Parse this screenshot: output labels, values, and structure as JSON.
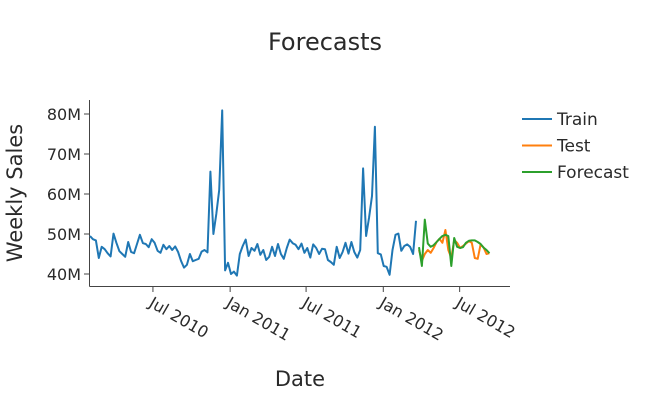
{
  "chart_data": {
    "type": "line",
    "title": "Forecasts",
    "xlabel": "Date",
    "ylabel": "Weekly Sales",
    "xlim": [
      "2010-02-01",
      "2012-10-29"
    ],
    "ylim": [
      37000000,
      83500000
    ],
    "y_ticks": [
      {
        "value": 40000000,
        "label": "40M"
      },
      {
        "value": 50000000,
        "label": "50M"
      },
      {
        "value": 60000000,
        "label": "60M"
      },
      {
        "value": 70000000,
        "label": "70M"
      },
      {
        "value": 80000000,
        "label": "80M"
      }
    ],
    "x_ticks": [
      {
        "value": "2010-07-01",
        "label": "Jul 2010"
      },
      {
        "value": "2011-01-01",
        "label": "Jan 2011"
      },
      {
        "value": "2011-07-01",
        "label": "Jul 2011"
      },
      {
        "value": "2012-01-01",
        "label": "Jan 2012"
      },
      {
        "value": "2012-07-01",
        "label": "Jul 2012"
      }
    ],
    "grid": false,
    "legend_position": "top-right",
    "series": [
      {
        "name": "Train",
        "color": "#1f77b4",
        "points": [
          [
            "2010-02-01",
            49.5
          ],
          [
            "2010-02-08",
            48.7
          ],
          [
            "2010-02-15",
            48.4
          ],
          [
            "2010-02-22",
            44.0
          ],
          [
            "2010-03-01",
            46.8
          ],
          [
            "2010-03-08",
            46.2
          ],
          [
            "2010-03-15",
            45.2
          ],
          [
            "2010-03-22",
            44.4
          ],
          [
            "2010-03-29",
            50.1
          ],
          [
            "2010-04-05",
            47.8
          ],
          [
            "2010-04-12",
            45.7
          ],
          [
            "2010-04-19",
            45.0
          ],
          [
            "2010-04-26",
            44.3
          ],
          [
            "2010-05-03",
            48.0
          ],
          [
            "2010-05-10",
            45.5
          ],
          [
            "2010-05-17",
            45.2
          ],
          [
            "2010-05-24",
            47.5
          ],
          [
            "2010-05-31",
            49.8
          ],
          [
            "2010-06-07",
            47.7
          ],
          [
            "2010-06-14",
            47.5
          ],
          [
            "2010-06-21",
            46.7
          ],
          [
            "2010-06-28",
            48.7
          ],
          [
            "2010-07-05",
            47.8
          ],
          [
            "2010-07-12",
            45.8
          ],
          [
            "2010-07-19",
            45.3
          ],
          [
            "2010-07-26",
            47.3
          ],
          [
            "2010-08-02",
            46.2
          ],
          [
            "2010-08-09",
            47.0
          ],
          [
            "2010-08-16",
            46.0
          ],
          [
            "2010-08-23",
            46.9
          ],
          [
            "2010-08-30",
            45.5
          ],
          [
            "2010-09-06",
            43.3
          ],
          [
            "2010-09-13",
            41.6
          ],
          [
            "2010-09-20",
            42.3
          ],
          [
            "2010-09-27",
            45.0
          ],
          [
            "2010-10-04",
            43.2
          ],
          [
            "2010-10-11",
            43.5
          ],
          [
            "2010-10-18",
            43.8
          ],
          [
            "2010-10-25",
            45.6
          ],
          [
            "2010-11-01",
            46.0
          ],
          [
            "2010-11-08",
            45.4
          ],
          [
            "2010-11-15",
            65.6
          ],
          [
            "2010-11-22",
            50.0
          ],
          [
            "2010-11-29",
            55.0
          ],
          [
            "2010-12-06",
            61.0
          ],
          [
            "2010-12-13",
            80.9
          ],
          [
            "2010-12-20",
            40.9
          ],
          [
            "2010-12-27",
            42.8
          ],
          [
            "2011-01-03",
            40.0
          ],
          [
            "2011-01-10",
            40.6
          ],
          [
            "2011-01-17",
            39.6
          ],
          [
            "2011-01-24",
            45.0
          ],
          [
            "2011-01-31",
            47.0
          ],
          [
            "2011-02-07",
            48.6
          ],
          [
            "2011-02-14",
            44.5
          ],
          [
            "2011-02-21",
            46.5
          ],
          [
            "2011-02-28",
            45.8
          ],
          [
            "2011-03-07",
            47.5
          ],
          [
            "2011-03-14",
            44.8
          ],
          [
            "2011-03-21",
            46.0
          ],
          [
            "2011-03-28",
            43.5
          ],
          [
            "2011-04-04",
            44.3
          ],
          [
            "2011-04-11",
            46.8
          ],
          [
            "2011-04-18",
            44.5
          ],
          [
            "2011-04-25",
            47.5
          ],
          [
            "2011-05-02",
            45.0
          ],
          [
            "2011-05-09",
            43.8
          ],
          [
            "2011-05-16",
            46.5
          ],
          [
            "2011-05-23",
            48.6
          ],
          [
            "2011-05-30",
            47.7
          ],
          [
            "2011-06-06",
            47.3
          ],
          [
            "2011-06-13",
            46.2
          ],
          [
            "2011-06-20",
            47.6
          ],
          [
            "2011-06-27",
            45.3
          ],
          [
            "2011-07-04",
            46.5
          ],
          [
            "2011-07-11",
            44.1
          ],
          [
            "2011-07-18",
            47.4
          ],
          [
            "2011-07-25",
            46.5
          ],
          [
            "2011-08-01",
            45.0
          ],
          [
            "2011-08-08",
            46.3
          ],
          [
            "2011-08-15",
            46.2
          ],
          [
            "2011-08-22",
            43.5
          ],
          [
            "2011-08-29",
            43.0
          ],
          [
            "2011-09-05",
            42.3
          ],
          [
            "2011-09-12",
            46.8
          ],
          [
            "2011-09-19",
            44.0
          ],
          [
            "2011-09-26",
            45.5
          ],
          [
            "2011-10-03",
            47.8
          ],
          [
            "2011-10-10",
            45.1
          ],
          [
            "2011-10-17",
            48.0
          ],
          [
            "2011-10-24",
            45.5
          ],
          [
            "2011-10-31",
            44.1
          ],
          [
            "2011-11-07",
            46.0
          ],
          [
            "2011-11-14",
            66.4
          ],
          [
            "2011-11-21",
            49.5
          ],
          [
            "2011-11-28",
            54.0
          ],
          [
            "2011-12-05",
            59.5
          ],
          [
            "2011-12-12",
            76.8
          ],
          [
            "2011-12-19",
            45.2
          ],
          [
            "2011-12-26",
            44.9
          ],
          [
            "2012-01-02",
            42.0
          ],
          [
            "2012-01-09",
            41.8
          ],
          [
            "2012-01-16",
            39.8
          ],
          [
            "2012-01-23",
            46.0
          ],
          [
            "2012-01-30",
            49.8
          ],
          [
            "2012-02-06",
            50.1
          ],
          [
            "2012-02-13",
            45.8
          ],
          [
            "2012-02-20",
            47.0
          ],
          [
            "2012-02-27",
            47.4
          ],
          [
            "2012-03-05",
            46.8
          ],
          [
            "2012-03-12",
            45.0
          ],
          [
            "2012-03-19",
            53.3
          ]
        ]
      },
      {
        "name": "Test",
        "color": "#ff7f0e",
        "points": [
          [
            "2012-03-26",
            46.0
          ],
          [
            "2012-04-02",
            43.3
          ],
          [
            "2012-04-09",
            45.0
          ],
          [
            "2012-04-16",
            46.0
          ],
          [
            "2012-04-23",
            45.3
          ],
          [
            "2012-04-30",
            46.5
          ],
          [
            "2012-05-07",
            48.0
          ],
          [
            "2012-05-14",
            48.8
          ],
          [
            "2012-05-21",
            47.8
          ],
          [
            "2012-05-28",
            51.0
          ],
          [
            "2012-06-04",
            46.0
          ],
          [
            "2012-06-11",
            44.0
          ],
          [
            "2012-06-18",
            48.5
          ],
          [
            "2012-06-25",
            47.8
          ],
          [
            "2012-07-02",
            46.5
          ],
          [
            "2012-07-09",
            47.0
          ],
          [
            "2012-07-16",
            47.6
          ],
          [
            "2012-07-23",
            48.2
          ],
          [
            "2012-07-30",
            47.8
          ],
          [
            "2012-08-06",
            44.0
          ],
          [
            "2012-08-13",
            43.8
          ],
          [
            "2012-08-20",
            47.4
          ],
          [
            "2012-08-27",
            46.6
          ],
          [
            "2012-09-03",
            45.0
          ],
          [
            "2012-09-10",
            45.2
          ]
        ]
      },
      {
        "name": "Forecast",
        "color": "#2ca02c",
        "points": [
          [
            "2012-03-26",
            46.7
          ],
          [
            "2012-04-02",
            42.0
          ],
          [
            "2012-04-09",
            53.6
          ],
          [
            "2012-04-16",
            47.6
          ],
          [
            "2012-04-23",
            46.8
          ],
          [
            "2012-04-30",
            47.2
          ],
          [
            "2012-05-07",
            48.0
          ],
          [
            "2012-05-14",
            48.8
          ],
          [
            "2012-05-21",
            49.5
          ],
          [
            "2012-05-28",
            49.8
          ],
          [
            "2012-06-04",
            49.5
          ],
          [
            "2012-06-11",
            42.0
          ],
          [
            "2012-06-18",
            49.0
          ],
          [
            "2012-06-25",
            46.8
          ],
          [
            "2012-07-02",
            46.5
          ],
          [
            "2012-07-09",
            46.7
          ],
          [
            "2012-07-16",
            47.8
          ],
          [
            "2012-07-23",
            48.3
          ],
          [
            "2012-07-30",
            48.4
          ],
          [
            "2012-08-06",
            48.4
          ],
          [
            "2012-08-13",
            48.0
          ],
          [
            "2012-08-20",
            47.5
          ],
          [
            "2012-08-27",
            46.6
          ],
          [
            "2012-09-03",
            46.0
          ],
          [
            "2012-09-10",
            45.2
          ]
        ]
      }
    ]
  }
}
